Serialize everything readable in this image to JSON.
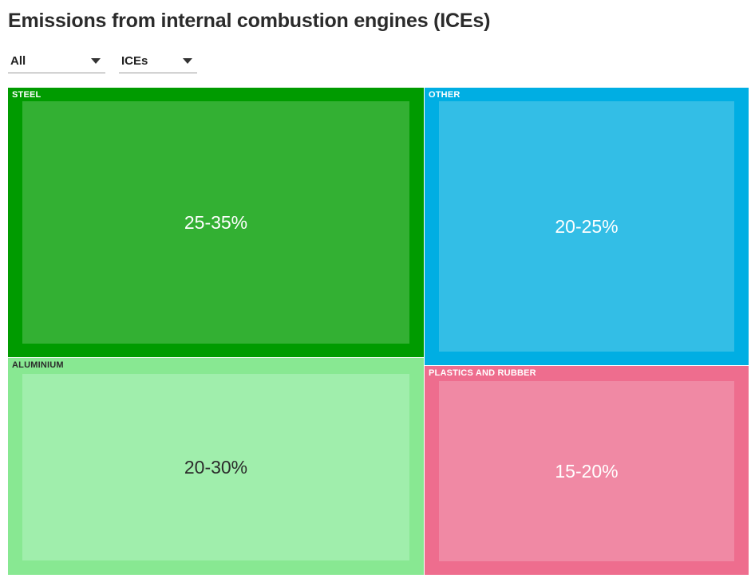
{
  "title": "Emissions from internal combustion engines (ICEs)",
  "filters": {
    "region": {
      "selected": "All"
    },
    "vehicle_type": {
      "selected": "ICEs"
    }
  },
  "colors": {
    "steel_outer": "#009b00",
    "steel_inner": "#33b033",
    "other_outer": "#00aee3",
    "other_inner": "#33bee6",
    "aluminium_outer": "#88e892",
    "aluminium_inner": "#a0eeac",
    "plastics_outer": "#ee6d8e",
    "plastics_inner": "#f089a4"
  },
  "chart_data": {
    "type": "treemap",
    "items": [
      {
        "name": "STEEL",
        "value_label": "25-35%",
        "midpoint": 30
      },
      {
        "name": "ALUMINIUM",
        "value_label": "20-30%",
        "midpoint": 25
      },
      {
        "name": "OTHER",
        "value_label": "20-25%",
        "midpoint": 22.5
      },
      {
        "name": "PLASTICS AND RUBBER",
        "value_label": "15-20%",
        "midpoint": 17.5
      }
    ]
  }
}
